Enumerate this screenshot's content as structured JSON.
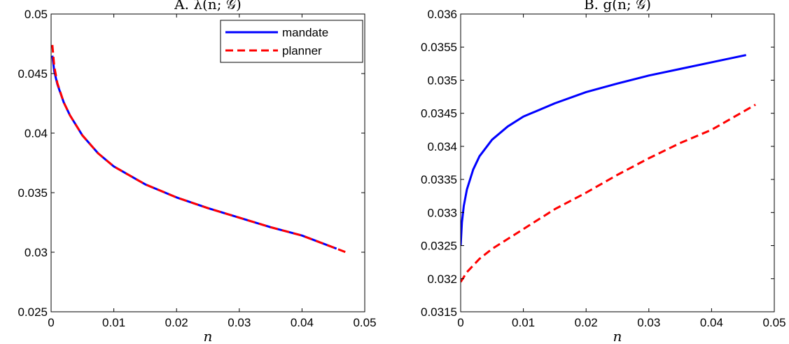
{
  "chart_data": [
    {
      "type": "line",
      "title": "A. λ(n; 𝒢)",
      "xlabel": "n",
      "ylabel": "",
      "xlim": [
        0,
        0.05
      ],
      "ylim": [
        0.025,
        0.05
      ],
      "xticks": [
        0,
        0.01,
        0.02,
        0.03,
        0.04,
        0.05
      ],
      "xtick_labels": [
        "0",
        "0.01",
        "0.02",
        "0.03",
        "0.04",
        "0.05"
      ],
      "yticks": [
        0.025,
        0.03,
        0.035,
        0.04,
        0.045,
        0.05
      ],
      "ytick_labels": [
        "0.025",
        "0.03",
        "0.035",
        "0.04",
        "0.045",
        "0.05"
      ],
      "grid": false,
      "legend": {
        "placement": "top-right",
        "entries": [
          "mandate",
          "planner"
        ]
      },
      "series": [
        {
          "name": "mandate",
          "color": "#0000ff",
          "style": "solid",
          "x": [
            0.0002,
            0.0005,
            0.001,
            0.002,
            0.003,
            0.005,
            0.0075,
            0.01,
            0.015,
            0.02,
            0.025,
            0.03,
            0.035,
            0.04,
            0.0455
          ],
          "y": [
            0.0465,
            0.0452,
            0.0441,
            0.0426,
            0.0415,
            0.0398,
            0.0383,
            0.0372,
            0.0357,
            0.0346,
            0.0337,
            0.0329,
            0.0321,
            0.0314,
            0.0303
          ]
        },
        {
          "name": "planner",
          "color": "#ff0000",
          "style": "dashed",
          "x": [
            0.0002,
            0.0005,
            0.001,
            0.002,
            0.003,
            0.005,
            0.0075,
            0.01,
            0.015,
            0.02,
            0.025,
            0.03,
            0.035,
            0.04,
            0.047
          ],
          "y": [
            0.0474,
            0.0456,
            0.0442,
            0.0426,
            0.0415,
            0.0398,
            0.0383,
            0.0372,
            0.0357,
            0.0346,
            0.0337,
            0.0329,
            0.0321,
            0.0314,
            0.03
          ]
        }
      ]
    },
    {
      "type": "line",
      "title": "B. g(n; 𝒢)",
      "xlabel": "n",
      "ylabel": "",
      "xlim": [
        0,
        0.05
      ],
      "ylim": [
        0.0315,
        0.036
      ],
      "xticks": [
        0,
        0.01,
        0.02,
        0.03,
        0.04,
        0.05
      ],
      "xtick_labels": [
        "0",
        "0.01",
        "0.02",
        "0.03",
        "0.04",
        "0.05"
      ],
      "yticks": [
        0.0315,
        0.032,
        0.0325,
        0.033,
        0.0335,
        0.034,
        0.0345,
        0.035,
        0.0355,
        0.036
      ],
      "ytick_labels": [
        "0.0315",
        "0.032",
        "0.0325",
        "0.033",
        "0.0335",
        "0.034",
        "0.0345",
        "0.035",
        "0.0355",
        "0.036"
      ],
      "grid": false,
      "series": [
        {
          "name": "mandate",
          "color": "#0000ff",
          "style": "solid",
          "x": [
            0,
            0.0002,
            0.0005,
            0.001,
            0.002,
            0.003,
            0.005,
            0.0075,
            0.01,
            0.015,
            0.02,
            0.025,
            0.03,
            0.035,
            0.04,
            0.0455
          ],
          "y": [
            0.0325,
            0.03285,
            0.0331,
            0.03335,
            0.03365,
            0.03385,
            0.0341,
            0.0343,
            0.03445,
            0.03465,
            0.03482,
            0.03495,
            0.03507,
            0.03517,
            0.03527,
            0.03538
          ]
        },
        {
          "name": "planner",
          "color": "#ff0000",
          "style": "dashed",
          "x": [
            0,
            0.001,
            0.002,
            0.003,
            0.005,
            0.0075,
            0.01,
            0.015,
            0.02,
            0.025,
            0.03,
            0.035,
            0.04,
            0.047
          ],
          "y": [
            0.03195,
            0.0321,
            0.0322,
            0.0323,
            0.03245,
            0.0326,
            0.03275,
            0.03305,
            0.0333,
            0.03357,
            0.03382,
            0.03405,
            0.03425,
            0.03463
          ]
        }
      ]
    }
  ]
}
